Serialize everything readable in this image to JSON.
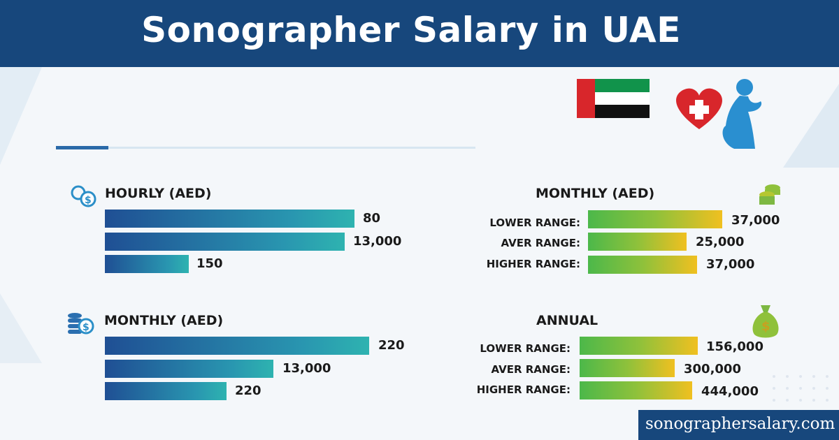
{
  "header": {
    "title": "Sonographer Salary in UAE"
  },
  "icons": {
    "flag": "uae-flag",
    "medical": "heart-cross-pregnant-woman-icon",
    "hourly": "coins-dollar-icon",
    "monthly_left": "coin-stack-dollar-icon",
    "monthly_right": "coin-stack-icon",
    "annual": "money-bag-icon"
  },
  "colors": {
    "header": "#17477c",
    "blue_bars": "#2996b0",
    "green_bars": "#8ec13b"
  },
  "footer": {
    "site": "sonographersalary.com"
  },
  "chart_data": [
    {
      "type": "bar",
      "orientation": "horizontal",
      "title": "HOURLY (AED)",
      "categories": [
        "",
        "",
        ""
      ],
      "values": [
        80,
        13000,
        150
      ],
      "data_labels": [
        "80",
        "13,000",
        "150"
      ]
    },
    {
      "type": "bar",
      "orientation": "horizontal",
      "title": "MONTHLY (AED)",
      "categories": [
        "",
        "",
        ""
      ],
      "values": [
        220,
        13000,
        220
      ],
      "data_labels": [
        "220",
        "13,000",
        "220"
      ]
    },
    {
      "type": "bar",
      "orientation": "horizontal",
      "title": "MONTHLY (AED)",
      "categories": [
        "LOWER RANGE:",
        "AVER RANGE:",
        "HIGHER RANGE:"
      ],
      "values": [
        37000,
        25000,
        37000
      ],
      "data_labels": [
        "37,000",
        "25,000",
        "37,000"
      ]
    },
    {
      "type": "bar",
      "orientation": "horizontal",
      "title": "ANNUAL",
      "categories": [
        "LOWER RANGE:",
        "AVER RANGE:",
        "HIGHER RANGE:"
      ],
      "values": [
        156000,
        300000,
        444000
      ],
      "data_labels": [
        "156,000",
        "300,000",
        "444,000"
      ]
    }
  ]
}
